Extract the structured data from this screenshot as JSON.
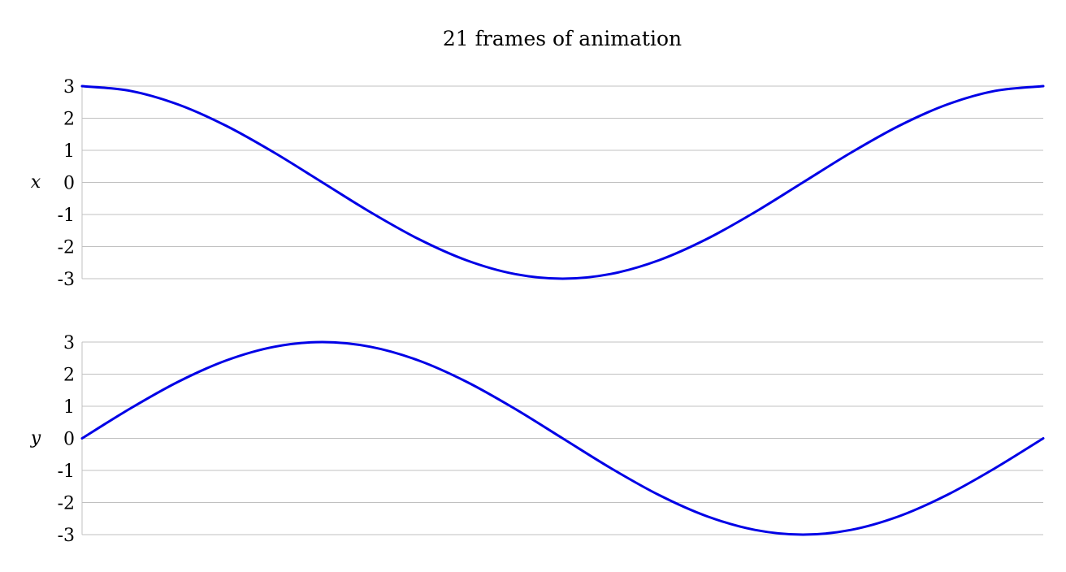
{
  "chart_data": {
    "title": "21 frames of animation",
    "line_color": "#0000e6",
    "grid_color": "#c0c0c0",
    "grid": true,
    "panels": [
      {
        "type": "line",
        "name": "x",
        "ylabel": "x",
        "xlim": [
          0,
          1
        ],
        "ylim": [
          -3,
          3
        ],
        "yticks": [
          3,
          2,
          1,
          0,
          -1,
          -2,
          -3
        ],
        "ytick_labels": [
          "3",
          "2",
          "1",
          "0",
          "-1",
          "-2",
          "-3"
        ],
        "series": [
          {
            "x": [
              0,
              0.05,
              0.1,
              0.15,
              0.2,
              0.25,
              0.3,
              0.35,
              0.4,
              0.45,
              0.5,
              0.55,
              0.6,
              0.65,
              0.7,
              0.75,
              0.8,
              0.85,
              0.9,
              0.95,
              1
            ],
            "y": [
              3,
              2.853,
              2.427,
              1.763,
              0.927,
              0,
              -0.927,
              -1.763,
              -2.427,
              -2.853,
              -3,
              -2.853,
              -2.427,
              -1.763,
              -0.927,
              0,
              0.927,
              1.763,
              2.427,
              2.853,
              3
            ]
          }
        ]
      },
      {
        "type": "line",
        "name": "y",
        "ylabel": "y",
        "xlim": [
          0,
          1
        ],
        "ylim": [
          -3,
          3
        ],
        "yticks": [
          3,
          2,
          1,
          0,
          -1,
          -2,
          -3
        ],
        "ytick_labels": [
          "3",
          "2",
          "1",
          "0",
          "-1",
          "-2",
          "-3"
        ],
        "series": [
          {
            "x": [
              0,
              0.05,
              0.1,
              0.15,
              0.2,
              0.25,
              0.3,
              0.35,
              0.4,
              0.45,
              0.5,
              0.55,
              0.6,
              0.65,
              0.7,
              0.75,
              0.8,
              0.85,
              0.9,
              0.95,
              1
            ],
            "y": [
              0,
              0.927,
              1.763,
              2.427,
              2.853,
              3,
              2.853,
              2.427,
              1.763,
              0.927,
              0,
              -0.927,
              -1.763,
              -2.427,
              -2.853,
              -3,
              -2.853,
              -2.427,
              -1.763,
              -0.927,
              0
            ]
          }
        ]
      }
    ]
  }
}
